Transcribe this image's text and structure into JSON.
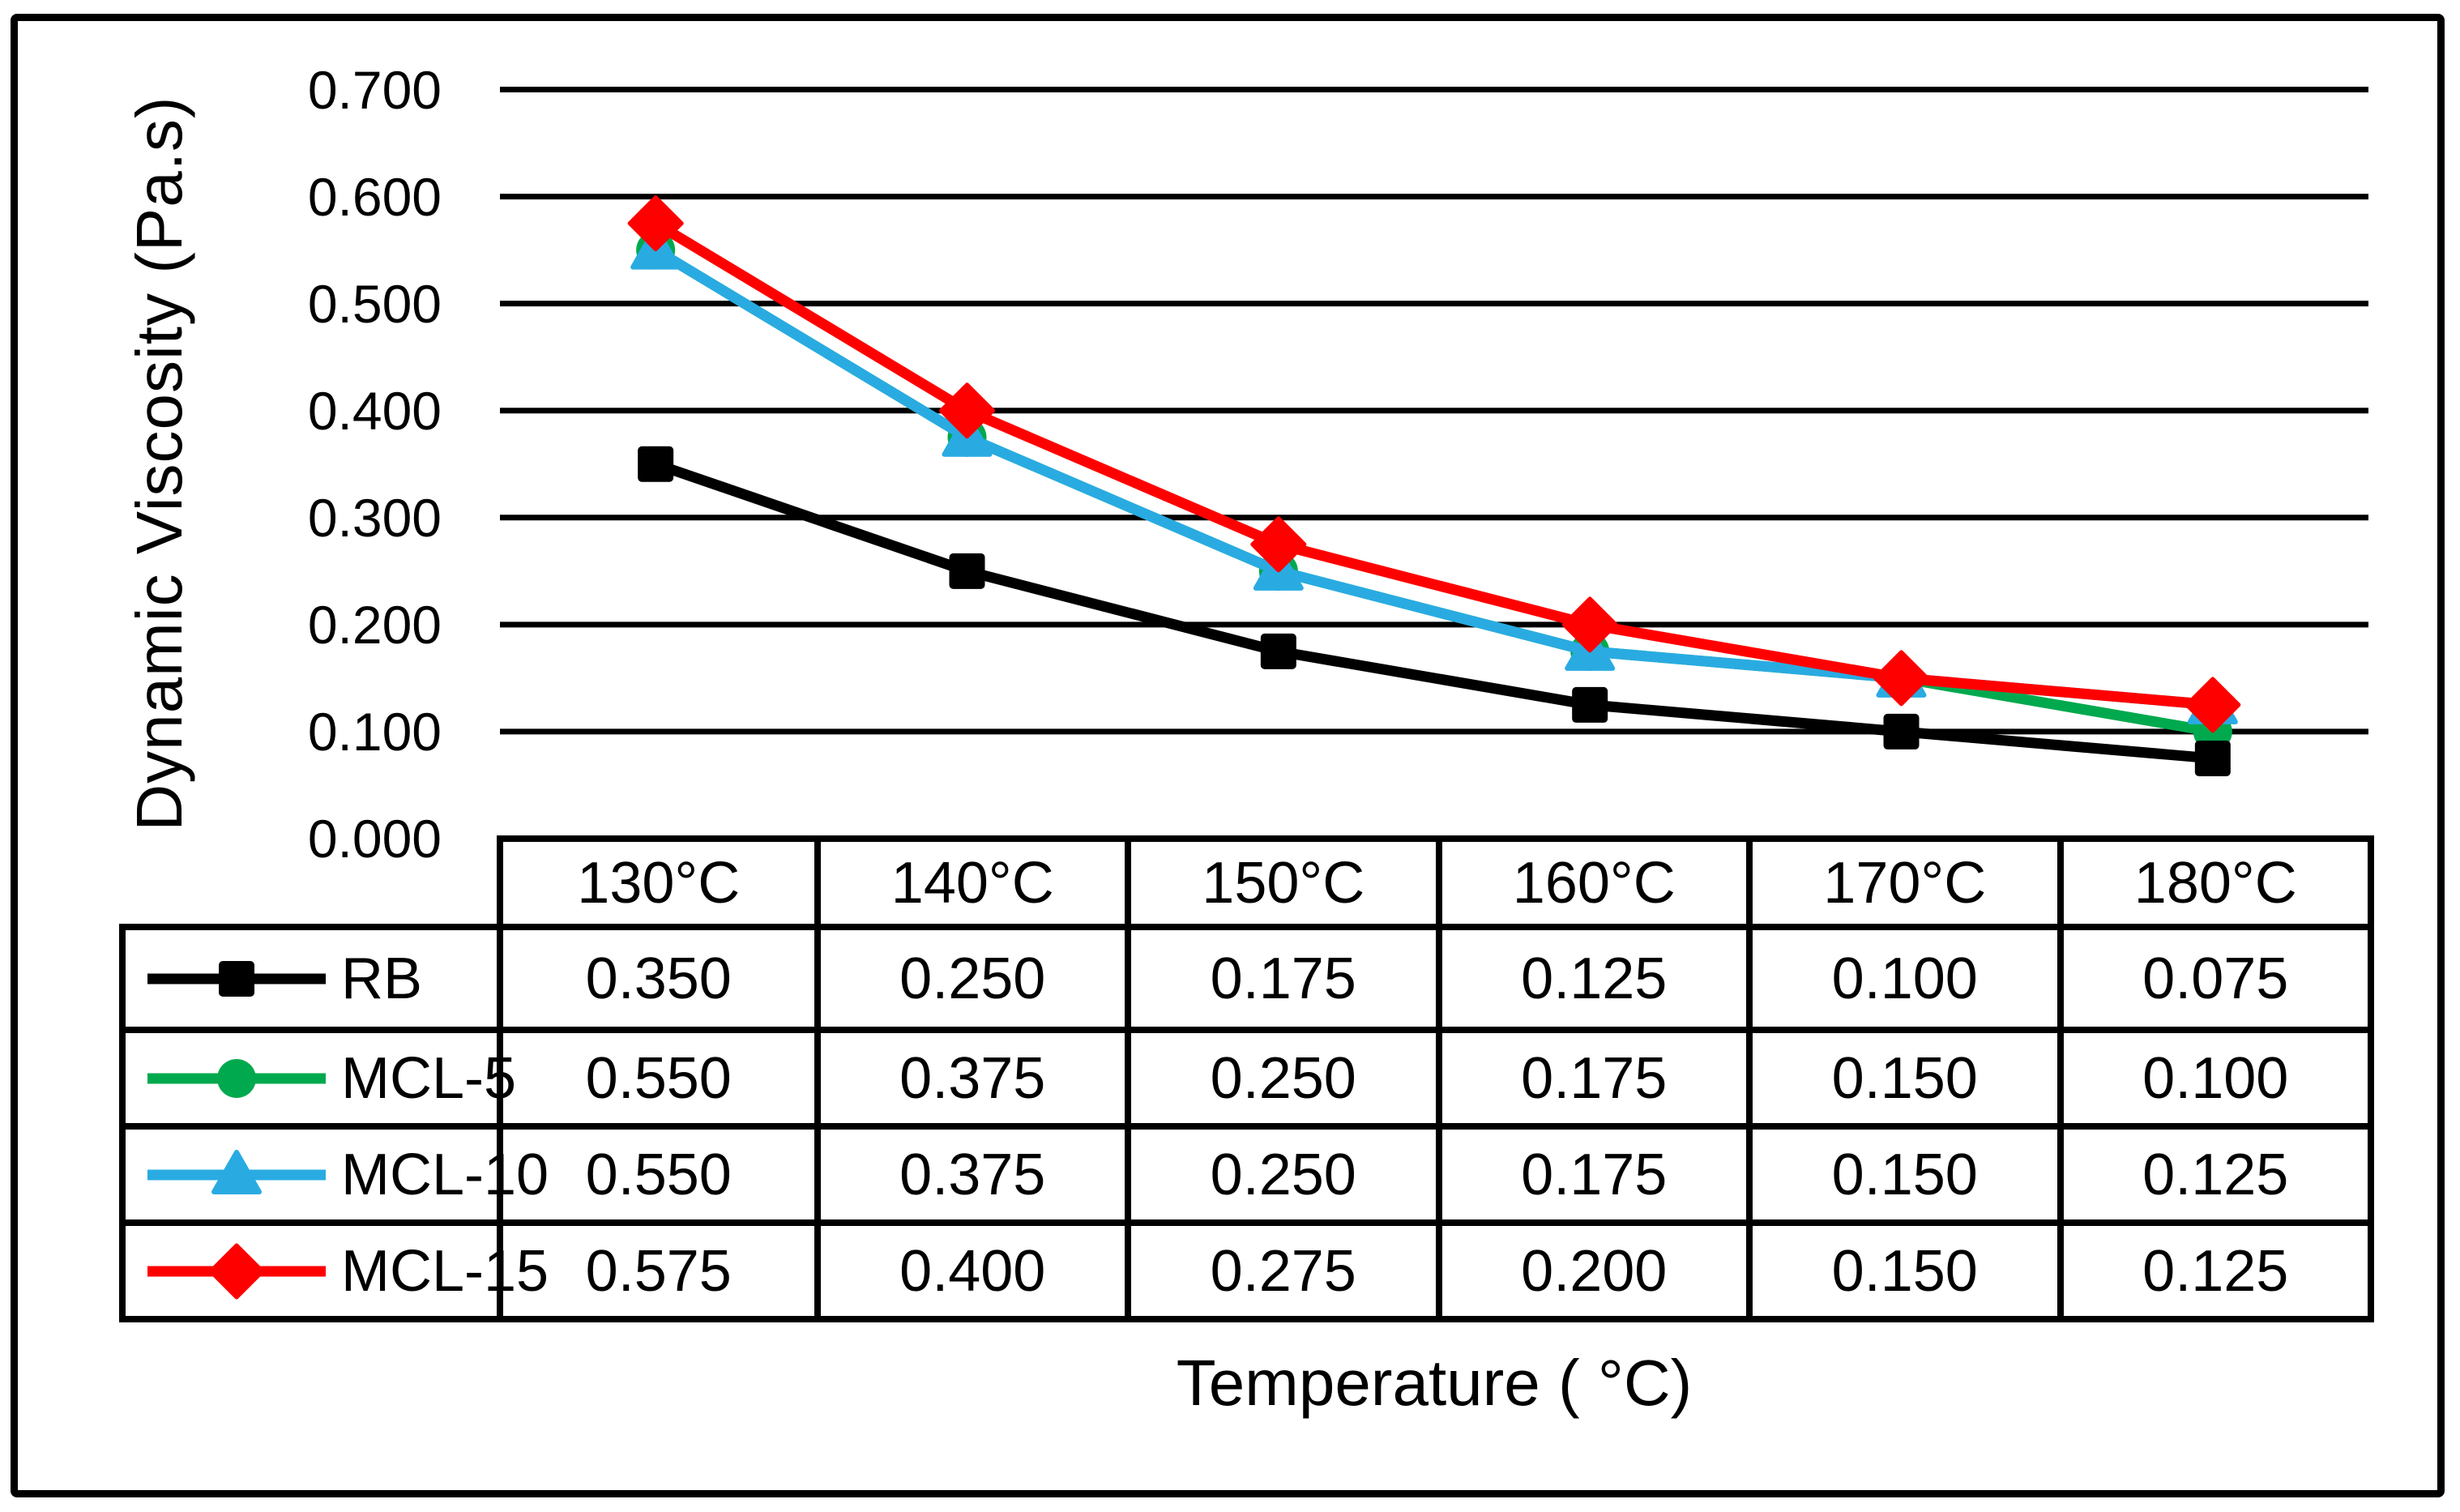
{
  "figure": {
    "background": "#FFFFFF",
    "border_color": "#000000"
  },
  "chart_data": {
    "type": "line",
    "title": "",
    "categories": [
      "130°C",
      "140°C",
      "150°C",
      "160°C",
      "170°C",
      "180°C"
    ],
    "xlabel": "Temperature ( °C)",
    "ylabel": "Dynamic Viscosity (Pa.s)",
    "ylim": [
      0.0,
      0.7
    ],
    "ytick_step": 0.1,
    "ytick_labels": [
      "0.700",
      "0.600",
      "0.500",
      "0.400",
      "0.300",
      "0.200",
      "0.100",
      "0.000"
    ],
    "grid": "horizontal",
    "legend_position": "data-table-left-column",
    "series": [
      {
        "name": "RB",
        "marker": "square",
        "color": "#000000",
        "values": [
          0.35,
          0.25,
          0.175,
          0.125,
          0.1,
          0.075
        ],
        "values_display": [
          "0.350",
          "0.250",
          "0.175",
          "0.125",
          "0.100",
          "0.075"
        ]
      },
      {
        "name": "MCL-5",
        "marker": "circle",
        "color": "#00A94E",
        "values": [
          0.55,
          0.375,
          0.25,
          0.175,
          0.15,
          0.1
        ],
        "values_display": [
          "0.550",
          "0.375",
          "0.250",
          "0.175",
          "0.150",
          "0.100"
        ]
      },
      {
        "name": "MCL-10",
        "marker": "triangle",
        "color": "#29ABE2",
        "values": [
          0.55,
          0.375,
          0.25,
          0.175,
          0.15,
          0.125
        ],
        "values_display": [
          "0.550",
          "0.375",
          "0.250",
          "0.175",
          "0.150",
          "0.125"
        ]
      },
      {
        "name": "MCL-15",
        "marker": "diamond",
        "color": "#FF0000",
        "values": [
          0.575,
          0.4,
          0.275,
          0.2,
          0.15,
          0.125
        ],
        "values_display": [
          "0.575",
          "0.400",
          "0.275",
          "0.200",
          "0.150",
          "0.125"
        ]
      }
    ]
  }
}
